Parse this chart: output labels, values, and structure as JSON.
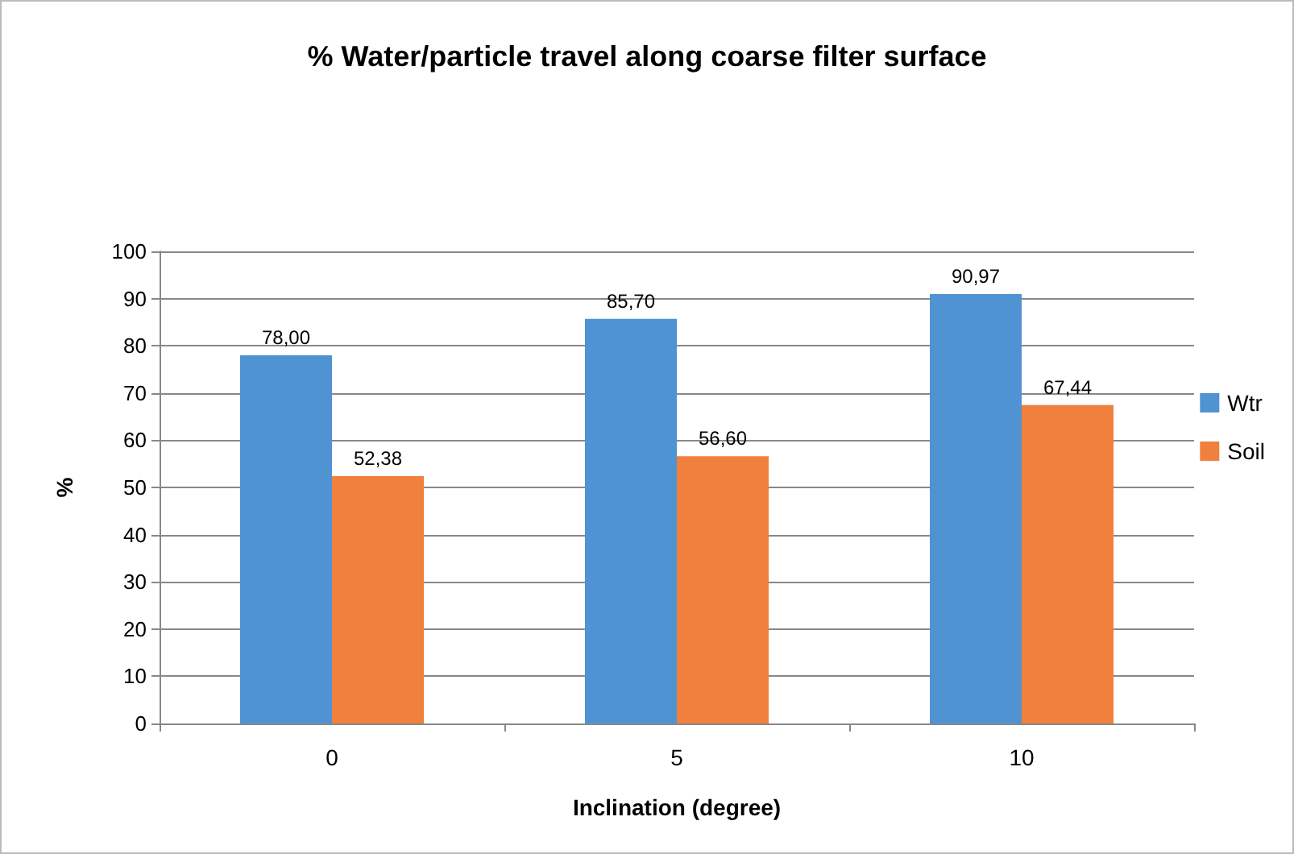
{
  "chart_data": {
    "type": "bar",
    "title": "% Water/particle travel along coarse filter surface",
    "xlabel": "Inclination (degree)",
    "ylabel": "%",
    "categories": [
      "0",
      "5",
      "10"
    ],
    "series": [
      {
        "name": "Wtr",
        "color": "#4f93d3",
        "values": [
          78.0,
          85.7,
          90.97
        ],
        "value_labels": [
          "78,00",
          "85,70",
          "90,97"
        ]
      },
      {
        "name": "Soil",
        "color": "#f0803c",
        "values": [
          52.38,
          56.6,
          67.44
        ],
        "value_labels": [
          "52,38",
          "56,60",
          "67,44"
        ]
      }
    ],
    "ylim": [
      0,
      100
    ],
    "yticks": [
      0,
      10,
      20,
      30,
      40,
      50,
      60,
      70,
      80,
      90,
      100
    ],
    "grid": "y",
    "legend": "right"
  }
}
